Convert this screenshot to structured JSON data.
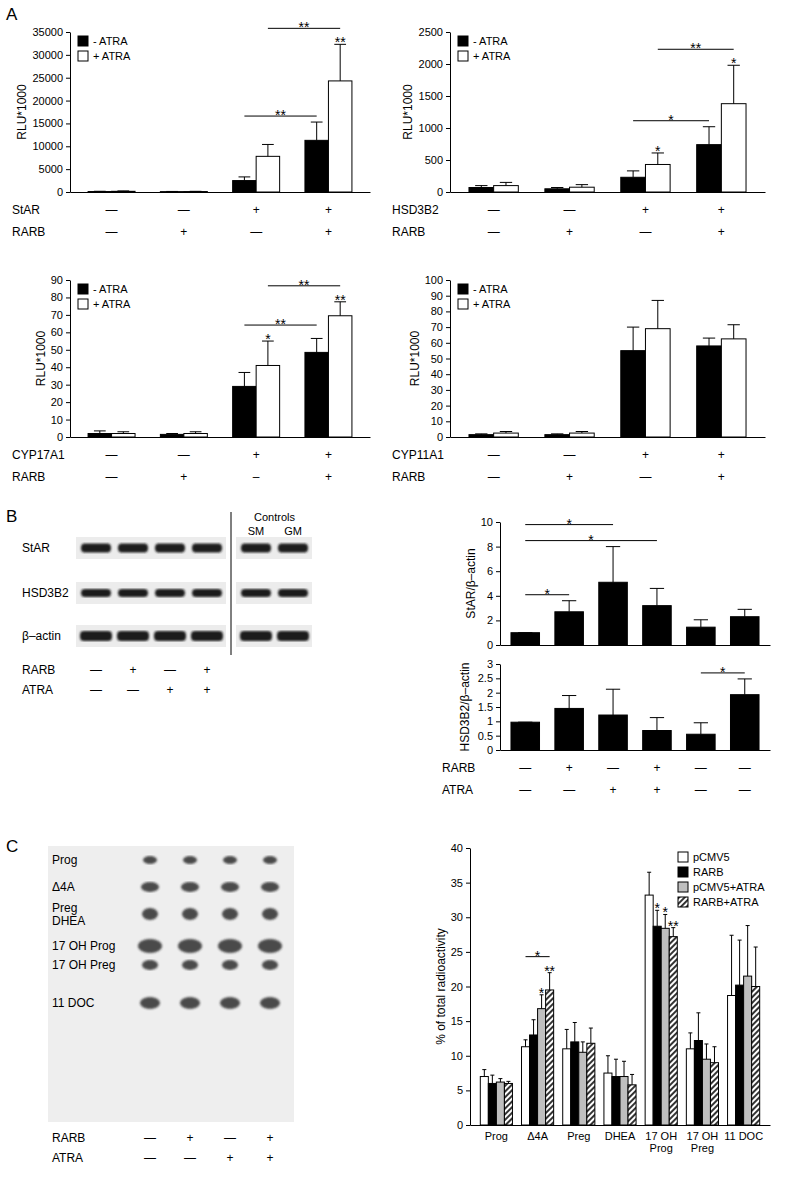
{
  "chart_data": [
    {
      "type": "bar",
      "ylabel": "RLU*1000",
      "categories": [
        null,
        null,
        null,
        null
      ],
      "condition_rows": [
        {
          "name": "StAR",
          "marks": [
            "—",
            "—",
            "+",
            "+"
          ]
        },
        {
          "name": "RARB",
          "marks": [
            "—",
            "+",
            "—",
            "+"
          ]
        }
      ],
      "series": [
        {
          "name": "- ATRA",
          "color": "#000000",
          "values": [
            100,
            80,
            2500,
            11300
          ],
          "errors": [
            60,
            40,
            800,
            4000
          ]
        },
        {
          "name": "+ ATRA",
          "color": "#ffffff",
          "values": [
            150,
            100,
            7800,
            24300
          ],
          "errors": [
            80,
            50,
            2600,
            8000
          ]
        }
      ],
      "ylim": [
        0,
        35000
      ],
      "yticks": [
        0,
        5000,
        10000,
        15000,
        20000,
        25000,
        30000,
        35000
      ],
      "legend": "upper left",
      "annotations": [
        {
          "text": "**",
          "category": 3,
          "series": 1
        }
      ],
      "brackets": [
        {
          "text": "**",
          "from": [
            2,
            0
          ],
          "to": [
            3,
            0
          ]
        },
        {
          "text": "**",
          "from": [
            2,
            1
          ],
          "to": [
            3,
            1
          ]
        }
      ]
    },
    {
      "type": "bar",
      "ylabel": "RLU*1000",
      "categories": [
        null,
        null,
        null,
        null
      ],
      "condition_rows": [
        {
          "name": "HSD3B2",
          "marks": [
            "—",
            "—",
            "+",
            "+"
          ]
        },
        {
          "name": "RARB",
          "marks": [
            "—",
            "+",
            "—",
            "+"
          ]
        }
      ],
      "series": [
        {
          "name": "- ATRA",
          "color": "#000000",
          "values": [
            70,
            50,
            230,
            740
          ],
          "errors": [
            30,
            20,
            100,
            280
          ]
        },
        {
          "name": "+ ATRA",
          "color": "#ffffff",
          "values": [
            100,
            75,
            430,
            1380
          ],
          "errors": [
            50,
            40,
            180,
            600
          ]
        }
      ],
      "ylim": [
        0,
        2500
      ],
      "yticks": [
        0,
        500,
        1000,
        1500,
        2000,
        2500
      ],
      "legend": "upper left",
      "annotations": [
        {
          "text": "*",
          "category": 2,
          "series": 1
        },
        {
          "text": "*",
          "category": 3,
          "series": 1
        }
      ],
      "brackets": [
        {
          "text": "*",
          "from": [
            2,
            0
          ],
          "to": [
            3,
            0
          ]
        },
        {
          "text": "**",
          "from": [
            2,
            1
          ],
          "to": [
            3,
            1
          ]
        }
      ]
    },
    {
      "type": "bar",
      "ylabel": "RLU*1000",
      "categories": [
        null,
        null,
        null,
        null
      ],
      "condition_rows": [
        {
          "name": "CYP17A1",
          "marks": [
            "—",
            "—",
            "+",
            "+"
          ]
        },
        {
          "name": "RARB",
          "marks": [
            "—",
            "+",
            "–",
            "+"
          ]
        }
      ],
      "series": [
        {
          "name": "- ATRA",
          "color": "#000000",
          "values": [
            2,
            1.5,
            29,
            48.5
          ],
          "errors": [
            1.5,
            0.5,
            8,
            8
          ]
        },
        {
          "name": "+ ATRA",
          "color": "#ffffff",
          "values": [
            2,
            2,
            41,
            69.5
          ],
          "errors": [
            1,
            1,
            14,
            8
          ]
        }
      ],
      "ylim": [
        0,
        90
      ],
      "yticks": [
        0,
        10,
        20,
        30,
        40,
        50,
        60,
        70,
        80,
        90
      ],
      "legend": "upper left",
      "annotations": [
        {
          "text": "*",
          "category": 2,
          "series": 1
        },
        {
          "text": "**",
          "category": 3,
          "series": 1
        }
      ],
      "brackets": [
        {
          "text": "**",
          "from": [
            2,
            0
          ],
          "to": [
            3,
            0
          ]
        },
        {
          "text": "**",
          "from": [
            2,
            1
          ],
          "to": [
            3,
            1
          ]
        }
      ]
    },
    {
      "type": "bar",
      "ylabel": "RLU*1000",
      "categories": [
        null,
        null,
        null,
        null
      ],
      "condition_rows": [
        {
          "name": "CYP11A1",
          "marks": [
            "—",
            "—",
            "+",
            "+"
          ]
        },
        {
          "name": "RARB",
          "marks": [
            "—",
            "+",
            "—",
            "+"
          ]
        }
      ],
      "series": [
        {
          "name": "- ATRA",
          "color": "#000000",
          "values": [
            1.5,
            1.5,
            55,
            58
          ],
          "errors": [
            0.5,
            0.5,
            15,
            5
          ]
        },
        {
          "name": "+ ATRA",
          "color": "#ffffff",
          "values": [
            2.5,
            2.5,
            69,
            62.5
          ],
          "errors": [
            1,
            1,
            18,
            9
          ]
        }
      ],
      "ylim": [
        0,
        100
      ],
      "yticks": [
        0,
        10,
        20,
        30,
        40,
        50,
        60,
        70,
        80,
        90,
        100
      ],
      "legend": "upper left"
    },
    {
      "type": "bar",
      "ylabel": "StAR/β–actin",
      "categories": [
        null,
        null,
        null,
        null,
        null,
        null
      ],
      "series": [
        {
          "color": "#000000",
          "values": [
            1,
            2.7,
            5.1,
            3.2,
            1.45,
            2.3
          ],
          "errors": [
            0,
            0.9,
            2.9,
            1.4,
            0.6,
            0.6
          ]
        }
      ],
      "ylim": [
        0,
        10
      ],
      "yticks": [
        0,
        2,
        4,
        6,
        8,
        10
      ],
      "brackets": [
        {
          "text": "*",
          "from": [
            0,
            0
          ],
          "to": [
            1,
            0
          ]
        },
        {
          "text": "*",
          "from": [
            0,
            0
          ],
          "to": [
            3,
            0
          ]
        },
        {
          "text": "*",
          "from": [
            0,
            0
          ],
          "to": [
            2,
            0
          ]
        }
      ]
    },
    {
      "type": "bar",
      "ylabel": "HSD3B2/β–actin",
      "categories": [
        null,
        null,
        null,
        null,
        null,
        null
      ],
      "condition_rows": [
        {
          "name": "RARB",
          "marks": [
            "—",
            "+",
            "—",
            "+",
            "—",
            "—"
          ]
        },
        {
          "name": "ATRA",
          "marks": [
            "—",
            "—",
            "+",
            "+",
            "—",
            "—"
          ]
        }
      ],
      "series": [
        {
          "color": "#000000",
          "values": [
            0.97,
            1.45,
            1.22,
            0.68,
            0.55,
            1.93
          ],
          "errors": [
            0,
            0.45,
            0.9,
            0.45,
            0.4,
            0.55
          ]
        }
      ],
      "ylim": [
        0,
        3
      ],
      "yticks": [
        0,
        0.5,
        1,
        1.5,
        2,
        2.5,
        3
      ],
      "brackets": [
        {
          "text": "*",
          "from": [
            4,
            0
          ],
          "to": [
            5,
            0
          ]
        }
      ]
    },
    {
      "type": "bar",
      "ylabel": "% of total radioactivity",
      "categories": [
        "Prog",
        "Δ4A",
        "Preg",
        "DHEA",
        "17 OH\nProg",
        "17 OH\nPreg",
        "11 DOC"
      ],
      "series": [
        {
          "name": "pCMV5",
          "color": "#ffffff",
          "values": [
            7,
            11.3,
            11,
            7.5,
            33.2,
            11,
            18.7
          ],
          "errors": [
            1,
            1,
            2.8,
            2.5,
            3.3,
            2.3,
            8.7
          ]
        },
        {
          "name": "RARB",
          "color": "#000000",
          "values": [
            6,
            13,
            12,
            7,
            28.7,
            12.2,
            20.2
          ],
          "errors": [
            1.2,
            2.2,
            2.8,
            2.5,
            2.3,
            4,
            6.5
          ]
        },
        {
          "name": "pCMV5+ATRA",
          "color": "#bfbfbf",
          "values": [
            6.2,
            16.8,
            10.5,
            7,
            28.4,
            9.5,
            21.5
          ],
          "errors": [
            0.5,
            2,
            1.5,
            2.2,
            2,
            2.2,
            7.3
          ]
        },
        {
          "name": "RARB+ATRA",
          "color": "#000000",
          "marker": "hatch",
          "values": [
            6,
            19.5,
            11.8,
            5.8,
            27.2,
            9,
            20
          ],
          "errors": [
            0.3,
            2.5,
            2.2,
            1.5,
            1.3,
            2.3,
            5.7
          ]
        }
      ],
      "ylim": [
        0,
        40
      ],
      "yticks": [
        0,
        5,
        10,
        15,
        20,
        25,
        30,
        35,
        40
      ],
      "legend": "upper right",
      "annotations": [
        {
          "text": "*",
          "category": 1,
          "series": 2
        },
        {
          "text": "**",
          "category": 1,
          "series": 3
        },
        {
          "text": "*",
          "category": 4,
          "series": 1
        },
        {
          "text": "*",
          "category": 4,
          "series": 2
        },
        {
          "text": "**",
          "category": 4,
          "series": 3
        }
      ],
      "brackets": [
        {
          "text": "*",
          "from": [
            1,
            0
          ],
          "to": [
            1,
            3
          ]
        }
      ]
    }
  ],
  "panels": [
    "A",
    "B",
    "C"
  ],
  "blot": {
    "rows": [
      "StAR",
      "HSD3B2",
      "β–actin"
    ],
    "group_label": "Controls",
    "control_lanes": [
      "SM",
      "GM"
    ],
    "conditions": [
      {
        "name": "RARB",
        "marks": [
          "—",
          "+",
          "—",
          "+"
        ]
      },
      {
        "name": "ATRA",
        "marks": [
          "—",
          "—",
          "+",
          "+"
        ]
      }
    ]
  },
  "tlc": {
    "rows": [
      "Prog",
      "Δ4A",
      "Preg\nDHEA",
      "17 OH Prog",
      "17 OH Preg",
      "11 DOC"
    ],
    "conditions": [
      {
        "name": "RARB",
        "marks": [
          "—",
          "+",
          "—",
          "+"
        ]
      },
      {
        "name": "ATRA",
        "marks": [
          "—",
          "—",
          "+",
          "+"
        ]
      }
    ]
  }
}
